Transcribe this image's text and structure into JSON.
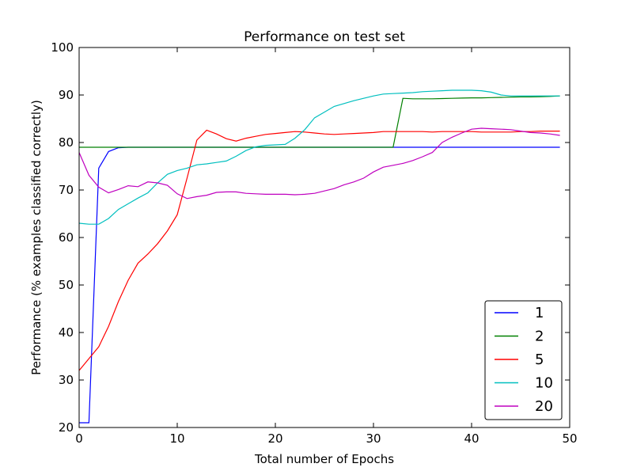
{
  "chart_data": {
    "type": "line",
    "title": "Performance on test set",
    "xlabel": "Total number of Epochs",
    "ylabel": "Performance (% examples classified correctly)",
    "xlim": [
      0,
      50
    ],
    "ylim": [
      20,
      100
    ],
    "xticks": [
      0,
      10,
      20,
      30,
      40,
      50
    ],
    "yticks": [
      20,
      30,
      40,
      50,
      60,
      70,
      80,
      90,
      100
    ],
    "grid": false,
    "legend_position": "lower-right",
    "x": [
      0,
      1,
      2,
      3,
      4,
      5,
      6,
      7,
      8,
      9,
      10,
      11,
      12,
      13,
      14,
      15,
      16,
      17,
      18,
      19,
      20,
      21,
      22,
      23,
      24,
      25,
      26,
      27,
      28,
      29,
      30,
      31,
      32,
      33,
      34,
      35,
      36,
      37,
      38,
      39,
      40,
      41,
      42,
      43,
      44,
      45,
      46,
      47,
      48,
      49
    ],
    "series": [
      {
        "name": "1",
        "color": "#0000ff",
        "values": [
          21,
          21,
          74.6,
          78.1,
          78.9,
          79,
          79,
          79,
          79,
          79,
          79,
          79,
          79,
          79,
          79,
          79,
          79,
          79,
          79,
          79,
          79,
          79,
          79,
          79,
          79,
          79,
          79,
          79,
          79,
          79,
          79,
          79,
          79,
          79,
          79,
          79,
          79,
          79,
          79,
          79,
          79,
          79,
          79,
          79,
          79,
          79,
          79,
          79,
          79,
          79
        ]
      },
      {
        "name": "2",
        "color": "#008000",
        "values": [
          79,
          79,
          79,
          79,
          79,
          79,
          79,
          79,
          79,
          79,
          79,
          79,
          79,
          79,
          79,
          79,
          79,
          79,
          79,
          79,
          79,
          79,
          79,
          79,
          79,
          79,
          79,
          79,
          79,
          79,
          79,
          79,
          79,
          89.3,
          89.2,
          89.2,
          89.2,
          89.25,
          89.3,
          89.35,
          89.4,
          89.4,
          89.45,
          89.5,
          89.55,
          89.6,
          89.6,
          89.65,
          89.7,
          89.8
        ]
      },
      {
        "name": "5",
        "color": "#ff0000",
        "values": [
          32,
          34.5,
          37,
          41.3,
          46.5,
          51,
          54.6,
          56.5,
          58.7,
          61.4,
          64.8,
          72.5,
          80.5,
          82.6,
          81.8,
          80.8,
          80.3,
          80.9,
          81.3,
          81.7,
          81.9,
          82.1,
          82.3,
          82.2,
          82.0,
          81.8,
          81.7,
          81.8,
          81.9,
          82.0,
          82.1,
          82.3,
          82.3,
          82.3,
          82.3,
          82.3,
          82.2,
          82.3,
          82.3,
          82.3,
          82.3,
          82.2,
          82.2,
          82.2,
          82.2,
          82.3,
          82.3,
          82.4,
          82.4,
          82.4
        ]
      },
      {
        "name": "10",
        "color": "#00bfbf",
        "values": [
          63,
          62.8,
          62.8,
          64,
          65.9,
          67.1,
          68.3,
          69.4,
          71.5,
          73.3,
          74.1,
          74.6,
          75.3,
          75.5,
          75.8,
          76.1,
          77.1,
          78.3,
          79.1,
          79.4,
          79.5,
          79.6,
          80.9,
          82.7,
          85.2,
          86.4,
          87.6,
          88.2,
          88.8,
          89.3,
          89.8,
          90.2,
          90.3,
          90.4,
          90.5,
          90.7,
          90.8,
          90.9,
          91.0,
          91.0,
          91.0,
          90.9,
          90.6,
          90.0,
          89.8,
          89.8,
          89.8,
          89.8,
          89.8,
          89.8
        ]
      },
      {
        "name": "20",
        "color": "#bf00bf",
        "values": [
          77.9,
          73.1,
          70.6,
          69.4,
          70.1,
          70.9,
          70.7,
          71.7,
          71.5,
          71,
          69.2,
          68.2,
          68.6,
          68.9,
          69.5,
          69.6,
          69.6,
          69.3,
          69.2,
          69.1,
          69.1,
          69.1,
          69.0,
          69.1,
          69.3,
          69.8,
          70.3,
          71.1,
          71.7,
          72.5,
          73.8,
          74.8,
          75.2,
          75.6,
          76.2,
          77.0,
          77.9,
          80.0,
          81.1,
          82.0,
          82.8,
          83.0,
          82.9,
          82.8,
          82.7,
          82.4,
          82.1,
          82.0,
          81.8,
          81.5
        ]
      }
    ]
  }
}
